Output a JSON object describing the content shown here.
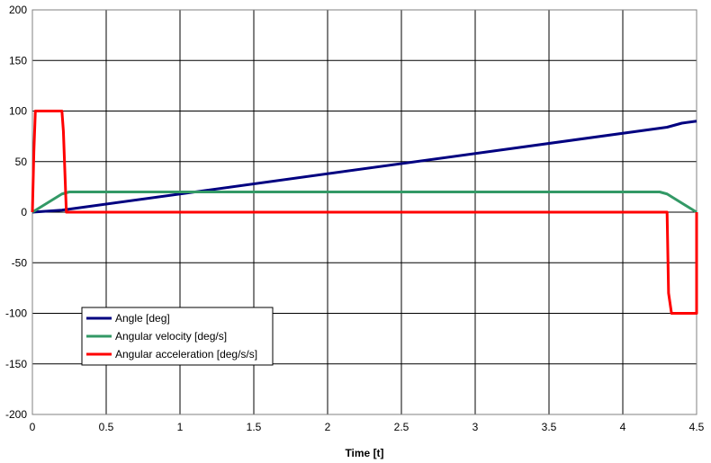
{
  "chart_data": {
    "type": "line",
    "xlabel": "Time [t]",
    "ylabel": "",
    "xlim": [
      0,
      4.5
    ],
    "ylim": [
      -200,
      200
    ],
    "x_ticks": [
      "0",
      "0.5",
      "1",
      "1.5",
      "2",
      "2.5",
      "3",
      "3.5",
      "4",
      "4.5"
    ],
    "y_ticks": [
      "200",
      "150",
      "100",
      "50",
      "0",
      "-50",
      "-100",
      "-150",
      "-200"
    ],
    "grid": true,
    "legend_position": "bottom-left",
    "series": [
      {
        "name": "Angle [deg]",
        "color": "#000080",
        "x": [
          0,
          0.2,
          4.3,
          4.4,
          4.5
        ],
        "y": [
          0,
          2,
          84,
          88,
          90
        ]
      },
      {
        "name": "Angular velocity [deg/s]",
        "color": "#339966",
        "x": [
          0,
          0.2,
          0.25,
          4.25,
          4.3,
          4.5
        ],
        "y": [
          0,
          18,
          20,
          20,
          18,
          0
        ]
      },
      {
        "name": "Angular acceleration [deg/s/s]",
        "color": "#ff0000",
        "x": [
          0,
          0.01,
          0.02,
          0.2,
          0.21,
          0.23,
          4.3,
          4.31,
          4.33,
          4.5,
          4.5
        ],
        "y": [
          0,
          60,
          100,
          100,
          80,
          0,
          0,
          -80,
          -100,
          -100,
          0
        ]
      }
    ]
  }
}
